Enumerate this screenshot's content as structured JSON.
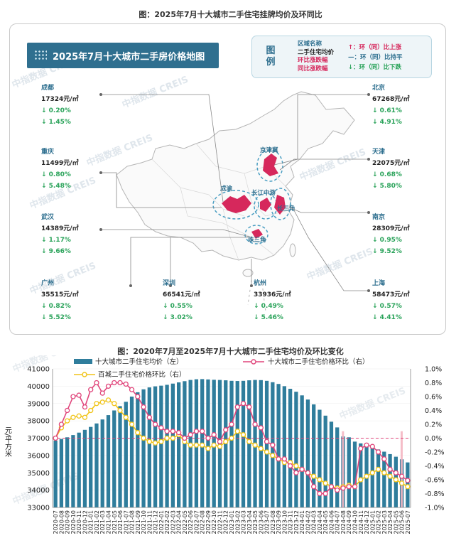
{
  "top_title": "图：2025年7月十大城市二手住宅挂牌均价及环同比",
  "bottom_title": "图：2020年7月至2025年7月十大城市二手住宅均价及环比变化",
  "map_banner": "2025年7月十大城市二手房价格地图",
  "watermark": "中指数据 CREIS",
  "legend": {
    "title": "图例",
    "lines": [
      "区域名称",
      "二手住宅均价",
      "环比涨跌幅",
      "同比涨跌幅"
    ],
    "arrows": [
      "↑：环（同）比上涨",
      "—：环（同）比持平",
      "↓：环（同）比下跌"
    ]
  },
  "cities": [
    {
      "name": "成都",
      "price": "17324元/㎡",
      "mom": "↓ 0.20%",
      "yoy": "↓ 1.45%"
    },
    {
      "name": "重庆",
      "price": "11499元/㎡",
      "mom": "↓ 0.80%",
      "yoy": "↓ 5.48%"
    },
    {
      "name": "武汉",
      "price": "14389元/㎡",
      "mom": "↓ 1.17%",
      "yoy": "↓ 9.66%"
    },
    {
      "name": "广州",
      "price": "35515元/㎡",
      "mom": "↓ 0.82%",
      "yoy": "↓ 5.52%"
    },
    {
      "name": "深圳",
      "price": "66541元/㎡",
      "mom": "↓ 0.55%",
      "yoy": "↓ 3.02%"
    },
    {
      "name": "杭州",
      "price": "33936元/㎡",
      "mom": "↓ 0.49%",
      "yoy": "↓ 5.46%"
    },
    {
      "name": "北京",
      "price": "67268元/㎡",
      "mom": "↓ 0.61%",
      "yoy": "↓ 4.91%"
    },
    {
      "name": "天津",
      "price": "22075元/㎡",
      "mom": "↓ 0.68%",
      "yoy": "↓ 5.80%"
    },
    {
      "name": "南京",
      "price": "28309元/㎡",
      "mom": "↓ 0.95%",
      "yoy": "↓ 9.52%"
    },
    {
      "name": "上海",
      "price": "58473元/㎡",
      "mom": "↓ 0.57%",
      "yoy": "↓ 4.41%"
    }
  ],
  "regions": [
    "京津冀",
    "成渝",
    "长江中游",
    "长三角",
    "珠三角"
  ],
  "colors": {
    "bar": "#2f7d9c",
    "bar_highlight": "#f4b6c2",
    "top10_line": "#e0457b",
    "top100_line": "#f0c419",
    "banner": "#2f6f8f",
    "up": "#e0457b",
    "down": "#2aa35a",
    "region": "#d6285c"
  },
  "chart_data": {
    "type": "bar",
    "title": "图：2020年7月至2025年7月十大城市二手住宅均价及环比变化",
    "ylabel_left": "元/平方米",
    "ylim_left": [
      33000,
      41000
    ],
    "left_ticks": [
      "41000",
      "40000",
      "39000",
      "38000",
      "37000",
      "36000",
      "35000",
      "34000",
      "33000"
    ],
    "ylim_right": [
      -1.0,
      1.0
    ],
    "right_ticks": [
      "1.0%",
      "0.8%",
      "0.6%",
      "0.4%",
      "0.2%",
      "0.0%",
      "-0.2%",
      "-0.4%",
      "-0.6%",
      "-0.8%",
      "-1.0%"
    ],
    "legend_placement": "top",
    "x": [
      "2020-07",
      "2020-08",
      "2020-09",
      "2020-10",
      "2020-11",
      "2020-12",
      "2021-01",
      "2021-02",
      "2021-03",
      "2021-04",
      "2021-05",
      "2021-06",
      "2021-07",
      "2021-08",
      "2021-09",
      "2021-10",
      "2021-11",
      "2021-12",
      "2022-01",
      "2022-02",
      "2022-03",
      "2022-04",
      "2022-05",
      "2022-06",
      "2022-07",
      "2022-08",
      "2022-09",
      "2022-10",
      "2022-11",
      "2022-12",
      "2023-01",
      "2023-02",
      "2023-03",
      "2023-04",
      "2023-05",
      "2023-06",
      "2023-07",
      "2023-08",
      "2023-09",
      "2023-10",
      "2023-11",
      "2023-12",
      "2024-01",
      "2024-02",
      "2024-03",
      "2024-04",
      "2024-05",
      "2024-06",
      "2024-07",
      "2024-08",
      "2024-09",
      "2024-10",
      "2024-11",
      "2024-12",
      "2025-01",
      "2025-02",
      "2025-03",
      "2025-04",
      "2025-05",
      "2025-06",
      "2025-07"
    ],
    "series": [
      {
        "name": "十大城市二手住宅均价（左）",
        "axis": "left",
        "kind": "bar",
        "values": [
          36860,
          36950,
          37050,
          37180,
          37320,
          37480,
          37650,
          37850,
          38080,
          38330,
          38600,
          38850,
          39100,
          39400,
          39650,
          39820,
          39930,
          39990,
          40030,
          40080,
          40150,
          40220,
          40290,
          40360,
          40400,
          40410,
          40390,
          40370,
          40360,
          40340,
          40310,
          40300,
          40310,
          40340,
          40360,
          40350,
          40310,
          40230,
          40130,
          40000,
          39850,
          39680,
          39470,
          39230,
          38950,
          38640,
          38300,
          37950,
          37620,
          37100,
          37050,
          36800,
          36700,
          36580,
          36480,
          36350,
          36220,
          36080,
          35930,
          35780,
          35600
        ]
      },
      {
        "name": "十大城市二手住宅价格环比（右）",
        "axis": "right",
        "kind": "line",
        "values": [
          0.0,
          0.2,
          0.4,
          0.6,
          0.62,
          0.45,
          0.7,
          0.8,
          0.65,
          0.75,
          0.8,
          0.8,
          0.78,
          0.7,
          0.6,
          0.45,
          0.3,
          0.2,
          0.15,
          0.1,
          0.1,
          0.08,
          0.0,
          0.05,
          0.1,
          0.1,
          0.0,
          0.05,
          -0.05,
          0.12,
          0.2,
          0.45,
          0.5,
          0.45,
          0.2,
          0.15,
          -0.05,
          -0.1,
          -0.3,
          -0.3,
          -0.4,
          -0.5,
          -0.45,
          -0.5,
          -0.7,
          -0.8,
          -0.8,
          -0.7,
          -0.75,
          -0.72,
          -0.7,
          -0.7,
          -0.15,
          -0.1,
          -0.12,
          -0.2,
          -0.3,
          -0.45,
          -0.5,
          -0.55,
          -0.61
        ]
      },
      {
        "name": "百城二手住宅价格环比（右）",
        "axis": "right",
        "kind": "line",
        "values": [
          0.0,
          0.15,
          0.25,
          0.3,
          0.32,
          0.3,
          0.4,
          0.5,
          0.52,
          0.55,
          0.5,
          0.4,
          0.3,
          0.2,
          0.08,
          0.0,
          -0.05,
          -0.07,
          -0.05,
          0.0,
          0.0,
          0.05,
          -0.05,
          -0.1,
          -0.1,
          -0.1,
          -0.15,
          -0.1,
          -0.12,
          -0.05,
          0.0,
          0.1,
          0.05,
          -0.05,
          -0.1,
          -0.15,
          -0.2,
          -0.25,
          -0.3,
          -0.35,
          -0.35,
          -0.4,
          -0.45,
          -0.5,
          -0.55,
          -0.6,
          -0.65,
          -0.7,
          -0.72,
          -0.7,
          -0.68,
          -0.7,
          -0.6,
          -0.55,
          -0.5,
          -0.45,
          -0.5,
          -0.55,
          -0.6,
          -0.65,
          -0.7
        ]
      }
    ]
  }
}
